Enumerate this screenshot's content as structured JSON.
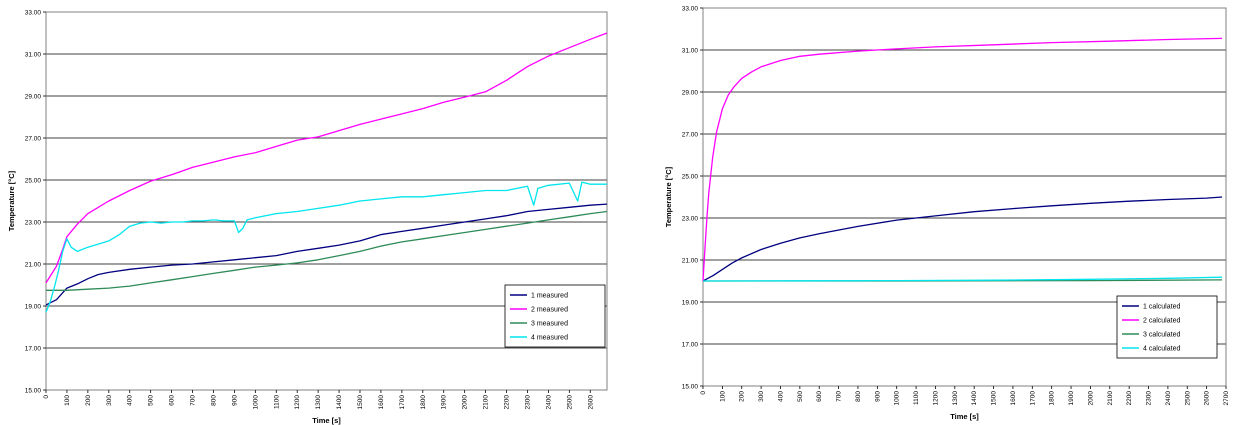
{
  "chart_data": [
    {
      "type": "line",
      "xlabel": "Time [s]",
      "ylabel": "Temperature [°C]",
      "xlim": [
        0,
        2680
      ],
      "ylim": [
        15,
        33
      ],
      "xticks": [
        0,
        100,
        200,
        300,
        400,
        500,
        600,
        700,
        800,
        900,
        1000,
        1100,
        1200,
        1300,
        1400,
        1500,
        1600,
        1700,
        1800,
        1900,
        2000,
        2100,
        2200,
        2300,
        2400,
        2500,
        2600
      ],
      "yticks": [
        "15.00",
        "17.00",
        "19.00",
        "21.00",
        "23.00",
        "25.00",
        "27.00",
        "29.00",
        "31.00",
        "33.00"
      ],
      "grid": "horizontal",
      "legend_position": "bottom-right",
      "series": [
        {
          "name": "1 measured",
          "color": "#000080",
          "x": [
            0,
            50,
            100,
            150,
            200,
            250,
            300,
            400,
            500,
            600,
            700,
            800,
            900,
            1000,
            1100,
            1200,
            1300,
            1400,
            1500,
            1600,
            1700,
            1800,
            1900,
            2000,
            2100,
            2200,
            2300,
            2400,
            2500,
            2600,
            2680
          ],
          "values": [
            19.05,
            19.3,
            19.85,
            20.05,
            20.3,
            20.5,
            20.6,
            20.75,
            20.85,
            20.95,
            21.0,
            21.1,
            21.2,
            21.3,
            21.4,
            21.6,
            21.75,
            21.9,
            22.1,
            22.4,
            22.55,
            22.7,
            22.85,
            23.0,
            23.15,
            23.3,
            23.5,
            23.6,
            23.7,
            23.8,
            23.85
          ]
        },
        {
          "name": "2 measured",
          "color": "#ff00ff",
          "x": [
            0,
            50,
            80,
            100,
            150,
            200,
            300,
            400,
            500,
            600,
            700,
            800,
            900,
            1000,
            1100,
            1200,
            1300,
            1400,
            1500,
            1600,
            1700,
            1800,
            1900,
            2000,
            2100,
            2200,
            2300,
            2400,
            2500,
            2600,
            2680
          ],
          "values": [
            20.1,
            20.9,
            21.7,
            22.3,
            22.9,
            23.4,
            24.0,
            24.5,
            24.95,
            25.25,
            25.6,
            25.85,
            26.1,
            26.3,
            26.6,
            26.9,
            27.05,
            27.35,
            27.65,
            27.9,
            28.15,
            28.4,
            28.7,
            28.95,
            29.2,
            29.75,
            30.4,
            30.9,
            31.3,
            31.7,
            32.0
          ]
        },
        {
          "name": "3 measured",
          "color": "#2e8b57",
          "x": [
            0,
            100,
            200,
            300,
            400,
            500,
            600,
            700,
            800,
            900,
            1000,
            1100,
            1200,
            1300,
            1400,
            1500,
            1600,
            1700,
            1800,
            1900,
            2000,
            2100,
            2200,
            2300,
            2400,
            2500,
            2600,
            2680
          ],
          "values": [
            19.75,
            19.75,
            19.8,
            19.85,
            19.95,
            20.1,
            20.25,
            20.4,
            20.55,
            20.7,
            20.85,
            20.95,
            21.05,
            21.2,
            21.4,
            21.6,
            21.85,
            22.05,
            22.2,
            22.35,
            22.5,
            22.65,
            22.8,
            22.95,
            23.1,
            23.25,
            23.4,
            23.5
          ]
        },
        {
          "name": "4 measured",
          "color": "#00e5ee",
          "x": [
            0,
            20,
            40,
            60,
            80,
            100,
            120,
            150,
            200,
            250,
            300,
            350,
            400,
            450,
            500,
            550,
            600,
            650,
            700,
            750,
            800,
            850,
            900,
            920,
            940,
            960,
            1000,
            1100,
            1200,
            1300,
            1400,
            1500,
            1600,
            1700,
            1800,
            1900,
            2000,
            2100,
            2200,
            2300,
            2330,
            2350,
            2400,
            2500,
            2540,
            2560,
            2600,
            2680
          ],
          "values": [
            18.7,
            19.2,
            19.9,
            20.7,
            21.6,
            22.2,
            21.8,
            21.6,
            21.8,
            21.95,
            22.1,
            22.4,
            22.8,
            22.95,
            23.0,
            22.95,
            23.0,
            23.0,
            23.05,
            23.05,
            23.1,
            23.05,
            23.05,
            22.5,
            22.7,
            23.1,
            23.2,
            23.4,
            23.5,
            23.65,
            23.8,
            24.0,
            24.1,
            24.2,
            24.2,
            24.3,
            24.4,
            24.5,
            24.5,
            24.7,
            23.8,
            24.6,
            24.75,
            24.85,
            24.0,
            24.9,
            24.8,
            24.8
          ]
        }
      ]
    },
    {
      "type": "line",
      "xlabel": "Time [s]",
      "ylabel": "Temperature [°C]",
      "xlim": [
        0,
        2700
      ],
      "ylim": [
        15,
        33
      ],
      "xticks": [
        0,
        100,
        200,
        300,
        400,
        500,
        600,
        700,
        800,
        900,
        1000,
        1100,
        1200,
        1300,
        1400,
        1500,
        1600,
        1700,
        1800,
        1900,
        2000,
        2100,
        2200,
        2300,
        2400,
        2500,
        2600,
        2700
      ],
      "yticks": [
        "15.00",
        "17.00",
        "19.00",
        "21.00",
        "23.00",
        "25.00",
        "27.00",
        "29.00",
        "31.00",
        "33.00"
      ],
      "grid": "horizontal",
      "legend_position": "bottom-right",
      "series": [
        {
          "name": "1 calculated",
          "color": "#000080",
          "x": [
            0,
            10,
            50,
            100,
            150,
            200,
            300,
            400,
            500,
            600,
            800,
            1000,
            1200,
            1400,
            1600,
            1800,
            2000,
            2200,
            2400,
            2600,
            2680
          ],
          "values": [
            20.0,
            20.05,
            20.25,
            20.55,
            20.85,
            21.1,
            21.5,
            21.8,
            22.05,
            22.25,
            22.6,
            22.9,
            23.1,
            23.3,
            23.45,
            23.58,
            23.7,
            23.8,
            23.88,
            23.95,
            24.0
          ]
        },
        {
          "name": "2 calculated",
          "color": "#ff00ff",
          "x": [
            0,
            10,
            20,
            30,
            50,
            70,
            100,
            130,
            160,
            200,
            250,
            300,
            400,
            500,
            600,
            800,
            1000,
            1200,
            1500,
            1800,
            2100,
            2400,
            2680
          ],
          "values": [
            20.0,
            21.5,
            23.0,
            24.2,
            25.9,
            27.1,
            28.2,
            28.85,
            29.25,
            29.65,
            29.95,
            30.2,
            30.5,
            30.7,
            30.8,
            30.95,
            31.05,
            31.15,
            31.25,
            31.35,
            31.42,
            31.5,
            31.55
          ]
        },
        {
          "name": "3 calculated",
          "color": "#2e8b57",
          "x": [
            0,
            1000,
            2000,
            2680
          ],
          "values": [
            20.0,
            20.0,
            20.02,
            20.05
          ]
        },
        {
          "name": "4 calculated",
          "color": "#00e5ee",
          "x": [
            0,
            500,
            1000,
            1500,
            2000,
            2400,
            2680
          ],
          "values": [
            20.0,
            20.01,
            20.02,
            20.04,
            20.08,
            20.13,
            20.18
          ]
        }
      ]
    }
  ]
}
